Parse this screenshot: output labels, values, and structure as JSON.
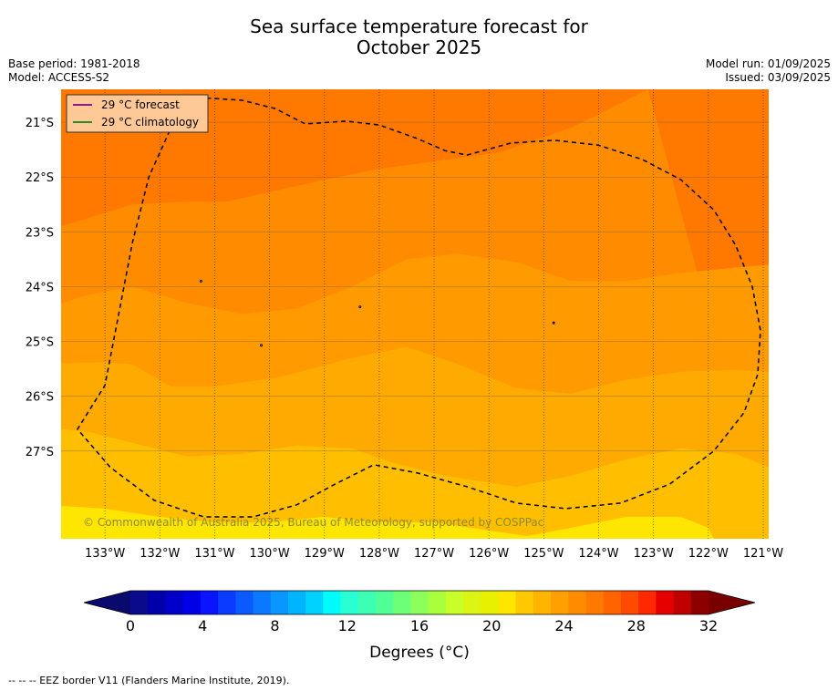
{
  "header": {
    "title_line1": "Sea surface temperature forecast for",
    "title_line2": "October 2025",
    "base_period": "Base period: 1981-2018",
    "model": "Model: ACCESS-S2",
    "model_run": "Model run: 01/09/2025",
    "issued": "Issued: 03/09/2025"
  },
  "footer": {
    "note": "--  --  -- EEZ border V11 (Flanders Marine Institute, 2019)."
  },
  "chart_data": {
    "type": "heatmap",
    "map": {
      "x_ticks": [
        "133°W",
        "132°W",
        "131°W",
        "130°W",
        "129°W",
        "128°W",
        "127°W",
        "126°W",
        "125°W",
        "124°W",
        "123°W",
        "122°W",
        "121°W"
      ],
      "y_ticks": [
        "21°S",
        "22°S",
        "23°S",
        "24°S",
        "25°S",
        "26°S",
        "27°S"
      ],
      "x_range": [
        -133.8,
        -120.9
      ],
      "y_range": [
        -28.6,
        -20.4
      ],
      "legend": {
        "placement": "top-left",
        "items": [
          {
            "label": "29 °C  forecast",
            "color": "#8b1a8b"
          },
          {
            "label": "29 °C  climatology",
            "color": "#2e8b22"
          }
        ]
      },
      "copyright": "© Commonwealth of Australia 2025, Bureau of Meteorology, supported by COSPPac",
      "bands_description": "SST decreases from about 27-28 °C in the north to about 21-22 °C in the south",
      "contours": [
        {
          "level": 28,
          "points": [
            [
              -133.8,
              -22.9
            ],
            [
              -132.5,
              -22.5
            ],
            [
              -131.5,
              -22.45
            ],
            [
              -130.8,
              -22.45
            ],
            [
              -129.0,
              -22.05
            ],
            [
              -128.0,
              -21.85
            ],
            [
              -126.9,
              -21.7
            ],
            [
              -125.8,
              -21.55
            ],
            [
              -124.5,
              -21.1
            ],
            [
              -123.5,
              -20.6
            ],
            [
              -123.1,
              -20.4
            ]
          ]
        },
        {
          "level": 27,
          "points": [
            [
              -133.8,
              -24.3
            ],
            [
              -133.3,
              -24.15
            ],
            [
              -132.5,
              -24.0
            ],
            [
              -131.5,
              -24.3
            ],
            [
              -130.5,
              -24.5
            ],
            [
              -129.5,
              -24.4
            ],
            [
              -128.5,
              -24.0
            ],
            [
              -127.5,
              -23.5
            ],
            [
              -126.6,
              -23.4
            ],
            [
              -125.5,
              -23.55
            ],
            [
              -124.5,
              -23.9
            ],
            [
              -123.5,
              -23.9
            ],
            [
              -122.5,
              -23.75
            ],
            [
              -121.5,
              -23.65
            ],
            [
              -120.9,
              -23.6
            ]
          ]
        },
        {
          "level": 26,
          "points": [
            [
              -133.8,
              -25.4
            ],
            [
              -133.0,
              -25.38
            ],
            [
              -132.5,
              -25.42
            ],
            [
              -131.8,
              -25.82
            ],
            [
              -131.0,
              -25.82
            ],
            [
              -129.8,
              -25.65
            ],
            [
              -128.5,
              -25.3
            ],
            [
              -127.5,
              -25.1
            ],
            [
              -126.6,
              -25.4
            ],
            [
              -125.5,
              -25.85
            ],
            [
              -124.5,
              -25.95
            ],
            [
              -123.5,
              -25.7
            ],
            [
              -122.5,
              -25.55
            ],
            [
              -121.5,
              -25.52
            ],
            [
              -120.9,
              -25.55
            ]
          ]
        },
        {
          "level": 25,
          "points": [
            [
              -133.8,
              -26.6
            ],
            [
              -133.3,
              -26.65
            ],
            [
              -132.5,
              -26.85
            ],
            [
              -131.5,
              -27.1
            ],
            [
              -130.5,
              -27.05
            ],
            [
              -129.5,
              -26.9
            ],
            [
              -128.5,
              -26.95
            ],
            [
              -127.8,
              -27.2
            ],
            [
              -126.8,
              -27.45
            ],
            [
              -125.5,
              -27.65
            ],
            [
              -124.5,
              -27.45
            ],
            [
              -123.5,
              -27.15
            ],
            [
              -122.5,
              -26.95
            ],
            [
              -121.5,
              -27.05
            ],
            [
              -120.9,
              -27.3
            ]
          ]
        },
        {
          "level": 24,
          "points": [
            [
              -133.8,
              -28.0
            ],
            [
              -133.0,
              -28.05
            ],
            [
              -132.0,
              -28.2
            ],
            [
              -131.0,
              -28.3
            ],
            [
              -130.0,
              -28.3
            ],
            [
              -129.0,
              -28.2
            ],
            [
              -128.0,
              -28.3
            ],
            [
              -127.0,
              -28.3
            ],
            [
              -126.0,
              -28.45
            ],
            [
              -125.3,
              -28.55
            ],
            [
              -124.5,
              -28.4
            ],
            [
              -123.5,
              -28.2
            ],
            [
              -122.5,
              -28.2
            ],
            [
              -122.0,
              -28.4
            ],
            [
              -121.9,
              -28.6
            ]
          ]
        }
      ],
      "islands": [
        [
          -131.25,
          -23.9
        ],
        [
          -128.35,
          -24.37
        ],
        [
          -124.82,
          -24.66
        ],
        [
          -130.15,
          -25.07
        ]
      ],
      "eez_border": [
        [
          -131.3,
          -20.55
        ],
        [
          -130.5,
          -20.6
        ],
        [
          -129.9,
          -20.75
        ],
        [
          -129.35,
          -21.03
        ],
        [
          -128.6,
          -20.98
        ],
        [
          -128.0,
          -21.05
        ],
        [
          -127.3,
          -21.3
        ],
        [
          -126.8,
          -21.52
        ],
        [
          -126.4,
          -21.6
        ],
        [
          -125.6,
          -21.38
        ],
        [
          -124.8,
          -21.33
        ],
        [
          -124.0,
          -21.42
        ],
        [
          -123.2,
          -21.68
        ],
        [
          -122.5,
          -22.05
        ],
        [
          -121.9,
          -22.6
        ],
        [
          -121.5,
          -23.25
        ],
        [
          -121.2,
          -24.0
        ],
        [
          -121.05,
          -24.8
        ],
        [
          -121.1,
          -25.6
        ],
        [
          -121.35,
          -26.3
        ],
        [
          -121.9,
          -27.0
        ],
        [
          -122.7,
          -27.6
        ],
        [
          -123.6,
          -27.95
        ],
        [
          -124.6,
          -28.05
        ],
        [
          -125.5,
          -27.95
        ],
        [
          -126.4,
          -27.65
        ],
        [
          -127.3,
          -27.4
        ],
        [
          -128.1,
          -27.25
        ],
        [
          -128.8,
          -27.6
        ],
        [
          -129.5,
          -27.98
        ],
        [
          -130.3,
          -28.2
        ],
        [
          -131.2,
          -28.2
        ],
        [
          -132.1,
          -27.9
        ],
        [
          -132.9,
          -27.3
        ],
        [
          -133.5,
          -26.6
        ],
        [
          -133.0,
          -25.8
        ],
        [
          -132.75,
          -24.5
        ],
        [
          -132.5,
          -23.2
        ],
        [
          -132.2,
          -22.0
        ],
        [
          -131.75,
          -21.0
        ],
        [
          -131.3,
          -20.55
        ]
      ]
    },
    "colorbar": {
      "levels": [
        0,
        1,
        2,
        3,
        4,
        5,
        6,
        7,
        8,
        9,
        10,
        11,
        12,
        13,
        14,
        15,
        16,
        17,
        18,
        19,
        20,
        21,
        22,
        23,
        24,
        25,
        26,
        27,
        28,
        29,
        30,
        31,
        32
      ],
      "tick_labels": [
        "0",
        "4",
        "8",
        "12",
        "16",
        "20",
        "24",
        "28",
        "32"
      ],
      "label": "Degrees (°C)",
      "colors": [
        "#0a0a8c",
        "#0000aa",
        "#0000c8",
        "#0000e6",
        "#0a14ff",
        "#0a3cff",
        "#0a5aff",
        "#0a78ff",
        "#0a96ff",
        "#00b4ff",
        "#00d2ff",
        "#00fbfb",
        "#28ffd2",
        "#3cffb4",
        "#50ff96",
        "#6eff78",
        "#8cff5a",
        "#aaff3c",
        "#c8ff28",
        "#dcf514",
        "#e6f000",
        "#ffe600",
        "#ffc800",
        "#ffb400",
        "#ffa000",
        "#ff8c00",
        "#ff7800",
        "#ff6400",
        "#ff4b00",
        "#ff2800",
        "#e60000",
        "#be0000",
        "#8c0000",
        "#780000"
      ],
      "under_color": "#0a0a6e",
      "over_color": "#780000"
    },
    "colors": {
      "t21": "#e9fc00",
      "t22": "#ffe600",
      "t23": "#ffd200",
      "t24": "#ffbe00",
      "t25": "#ffaa00",
      "t26": "#ff9a00",
      "t27": "#ff8c00",
      "t28": "#ff7800"
    }
  }
}
